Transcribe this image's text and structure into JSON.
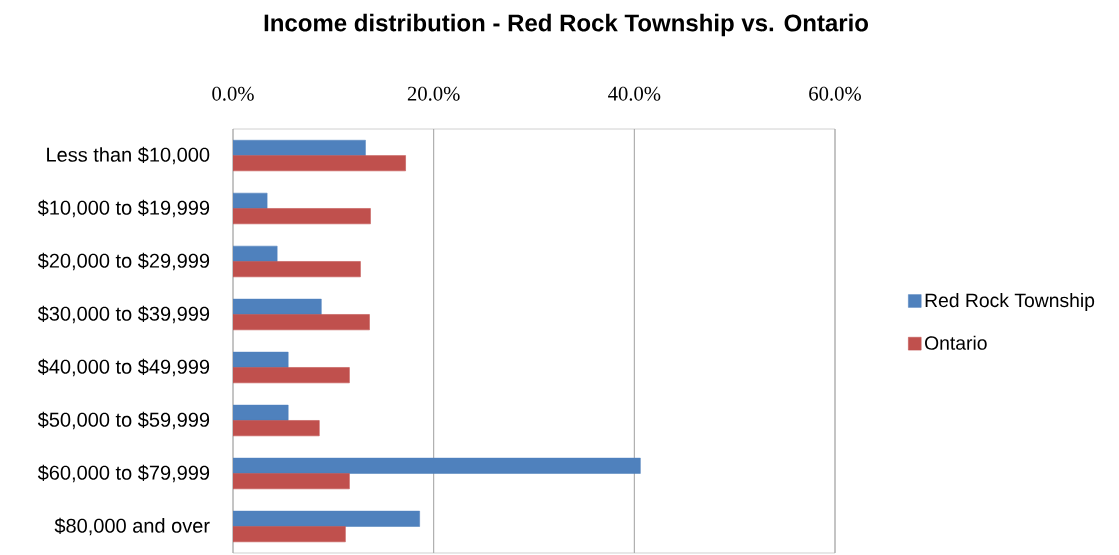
{
  "chart_data": {
    "type": "bar",
    "orientation": "horizontal",
    "title": "Income distribution - Red Rock Township vs. Ontario",
    "categories": [
      "Less than $10,000",
      "$10,000 to $19,999",
      "$20,000 to $29,999",
      "$30,000 to $39,999",
      "$40,000 to $49,999",
      "$50,000 to $59,999",
      "$60,000 to $79,999",
      "$80,000 and over"
    ],
    "series": [
      {
        "name": "Red Rock Township",
        "color": "#4f81bd",
        "values": [
          13.2,
          3.4,
          4.4,
          8.8,
          5.5,
          5.5,
          40.6,
          18.6
        ]
      },
      {
        "name": "Ontario",
        "color": "#c0504d",
        "values": [
          17.2,
          13.7,
          12.7,
          13.6,
          11.6,
          8.6,
          11.6,
          11.2
        ]
      }
    ],
    "xlim": [
      0,
      60
    ],
    "xticks": [
      {
        "value": 0,
        "label": "0.0%"
      },
      {
        "value": 20,
        "label": "20.0%"
      },
      {
        "value": 40,
        "label": "40.0%"
      },
      {
        "value": 60,
        "label": "60.0%"
      }
    ],
    "grid": "x",
    "legend": "right"
  }
}
